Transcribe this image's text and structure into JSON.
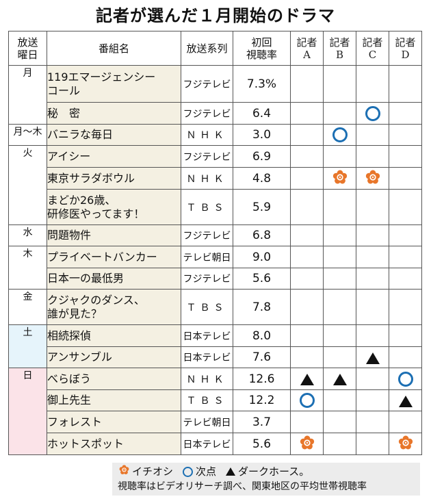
{
  "title": "記者が選んだ１月開始のドラマ",
  "headers": {
    "day": "放送\n曜日",
    "program": "番組名",
    "network": "放送系列",
    "rating": "初回\n視聴率",
    "reporters": [
      "記者\nA",
      "記者\nB",
      "記者\nC",
      "記者\nD"
    ]
  },
  "days": {
    "mon": "月",
    "montothu": "月～木",
    "tue": "火",
    "wed": "水",
    "thu": "木",
    "fri": "金",
    "sat": "土",
    "sun": "日"
  },
  "rows": [
    {
      "program": "119エマージェンシー\nコール",
      "network": "フジテレビ",
      "rating": "7.3%",
      "marks": [
        "",
        "",
        "",
        ""
      ]
    },
    {
      "program": "秘　密",
      "network": "フジテレビ",
      "rating": "6.4",
      "marks": [
        "",
        "",
        "ring",
        ""
      ]
    },
    {
      "program": "バニラな毎日",
      "network": "ＮＨＫ",
      "rating": "3.0",
      "marks": [
        "",
        "ring",
        "",
        ""
      ]
    },
    {
      "program": "アイシー",
      "network": "フジテレビ",
      "rating": "6.9",
      "marks": [
        "",
        "",
        "",
        ""
      ]
    },
    {
      "program": "東京サラダボウル",
      "network": "ＮＨＫ",
      "rating": "4.8",
      "marks": [
        "",
        "flower",
        "flower",
        ""
      ]
    },
    {
      "program": "まどか26歳、\n研修医やってます！",
      "network": "ＴＢＳ",
      "rating": "5.9",
      "marks": [
        "",
        "",
        "",
        ""
      ]
    },
    {
      "program": "問題物件",
      "network": "フジテレビ",
      "rating": "6.8",
      "marks": [
        "",
        "",
        "",
        ""
      ]
    },
    {
      "program": "プライベートバンカー",
      "network": "テレビ朝日",
      "rating": "9.0",
      "marks": [
        "",
        "",
        "",
        ""
      ]
    },
    {
      "program": "日本一の最低男",
      "network": "フジテレビ",
      "rating": "5.6",
      "marks": [
        "",
        "",
        "",
        ""
      ]
    },
    {
      "program": "クジャクのダンス、\n誰が見た？",
      "network": "ＴＢＳ",
      "rating": "7.8",
      "marks": [
        "",
        "",
        "",
        ""
      ]
    },
    {
      "program": "相続探偵",
      "network": "日本テレビ",
      "rating": "8.0",
      "marks": [
        "",
        "",
        "",
        ""
      ]
    },
    {
      "program": "アンサンブル",
      "network": "日本テレビ",
      "rating": "7.6",
      "marks": [
        "",
        "",
        "tri",
        ""
      ]
    },
    {
      "program": "べらぼう",
      "network": "ＮＨＫ",
      "rating": "12.6",
      "marks": [
        "tri",
        "tri",
        "",
        "ring"
      ]
    },
    {
      "program": "御上先生",
      "network": "ＴＢＳ",
      "rating": "12.2",
      "marks": [
        "ring",
        "",
        "",
        "tri"
      ]
    },
    {
      "program": "フォレスト",
      "network": "テレビ朝日",
      "rating": "3.7",
      "marks": [
        "",
        "",
        "",
        ""
      ]
    },
    {
      "program": "ホットスポット",
      "network": "日本テレビ",
      "rating": "5.6",
      "marks": [
        "flower",
        "",
        "",
        "flower"
      ]
    }
  ],
  "legend": {
    "flower_label": "イチオシ",
    "ring_label": "次点",
    "tri_label": "ダークホース。",
    "note": "視聴率はビデオリサーチ調べ、関東地区の平均世帯視聴率"
  },
  "colors": {
    "ring": "#1c6fb3",
    "flower": "#e8762a",
    "sat_bg": "#e6f4fb",
    "sun_bg": "#fbe3e8",
    "reporter_header_bg": "#fdf4c6",
    "program_bg": "#f4f0e2"
  }
}
